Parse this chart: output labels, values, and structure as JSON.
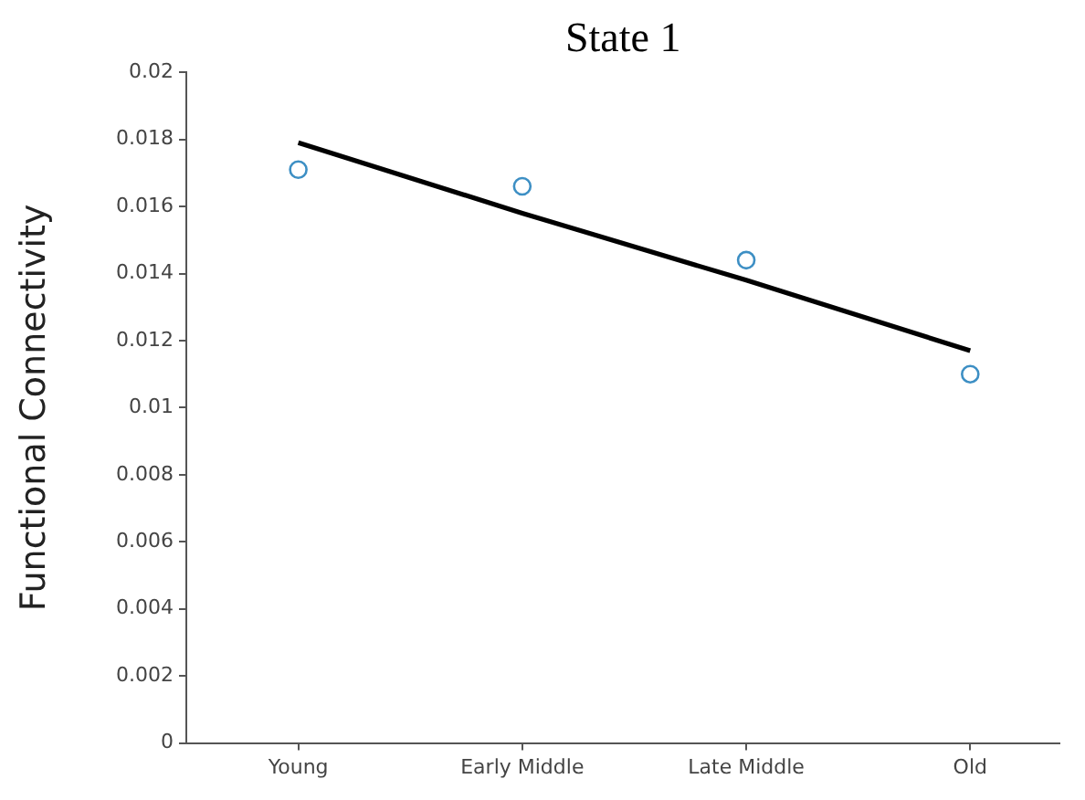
{
  "chart_data": {
    "type": "scatter",
    "title": "State 1",
    "ylabel": "Functional Connectivity",
    "categories": [
      "Young",
      "Early Middle",
      "Late Middle",
      "Old"
    ],
    "ylim": [
      0,
      0.02
    ],
    "yticks": [
      0,
      0.002,
      0.004,
      0.006,
      0.008,
      0.01,
      0.012,
      0.014,
      0.016,
      0.018,
      0.02
    ],
    "series": [
      {
        "color": "#3d8fc4",
        "marker": "circle",
        "values": [
          0.0171,
          0.0166,
          0.0144,
          0.011
        ]
      },
      {
        "type": "line",
        "color": "#000000",
        "values": [
          0.0179,
          0.0158,
          0.0138,
          0.0117
        ]
      }
    ]
  }
}
